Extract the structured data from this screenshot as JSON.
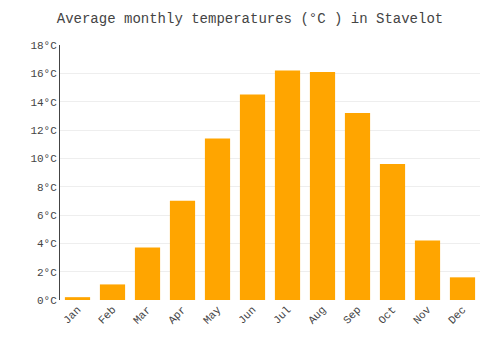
{
  "chart_data": {
    "type": "bar",
    "title": "Average monthly temperatures (°C ) in Stavelot",
    "categories": [
      "Jan",
      "Feb",
      "Mar",
      "Apr",
      "May",
      "Jun",
      "Jul",
      "Aug",
      "Sep",
      "Oct",
      "Nov",
      "Dec"
    ],
    "values": [
      0.2,
      1.1,
      3.7,
      7.0,
      11.4,
      14.5,
      16.2,
      16.1,
      13.2,
      9.6,
      4.2,
      1.6
    ],
    "color": "#FFA500",
    "ylim": [
      0,
      18
    ],
    "yticks": [
      {
        "value": 0,
        "label": "0°C"
      },
      {
        "value": 2,
        "label": "2°C"
      },
      {
        "value": 4,
        "label": "4°C"
      },
      {
        "value": 6,
        "label": "6°C"
      },
      {
        "value": 8,
        "label": "8°C"
      },
      {
        "value": 10,
        "label": "10°C"
      },
      {
        "value": 12,
        "label": "12°C"
      },
      {
        "value": 14,
        "label": "14°C"
      },
      {
        "value": 16,
        "label": "16°C"
      },
      {
        "value": 18,
        "label": "18°C"
      }
    ],
    "grid": true
  }
}
